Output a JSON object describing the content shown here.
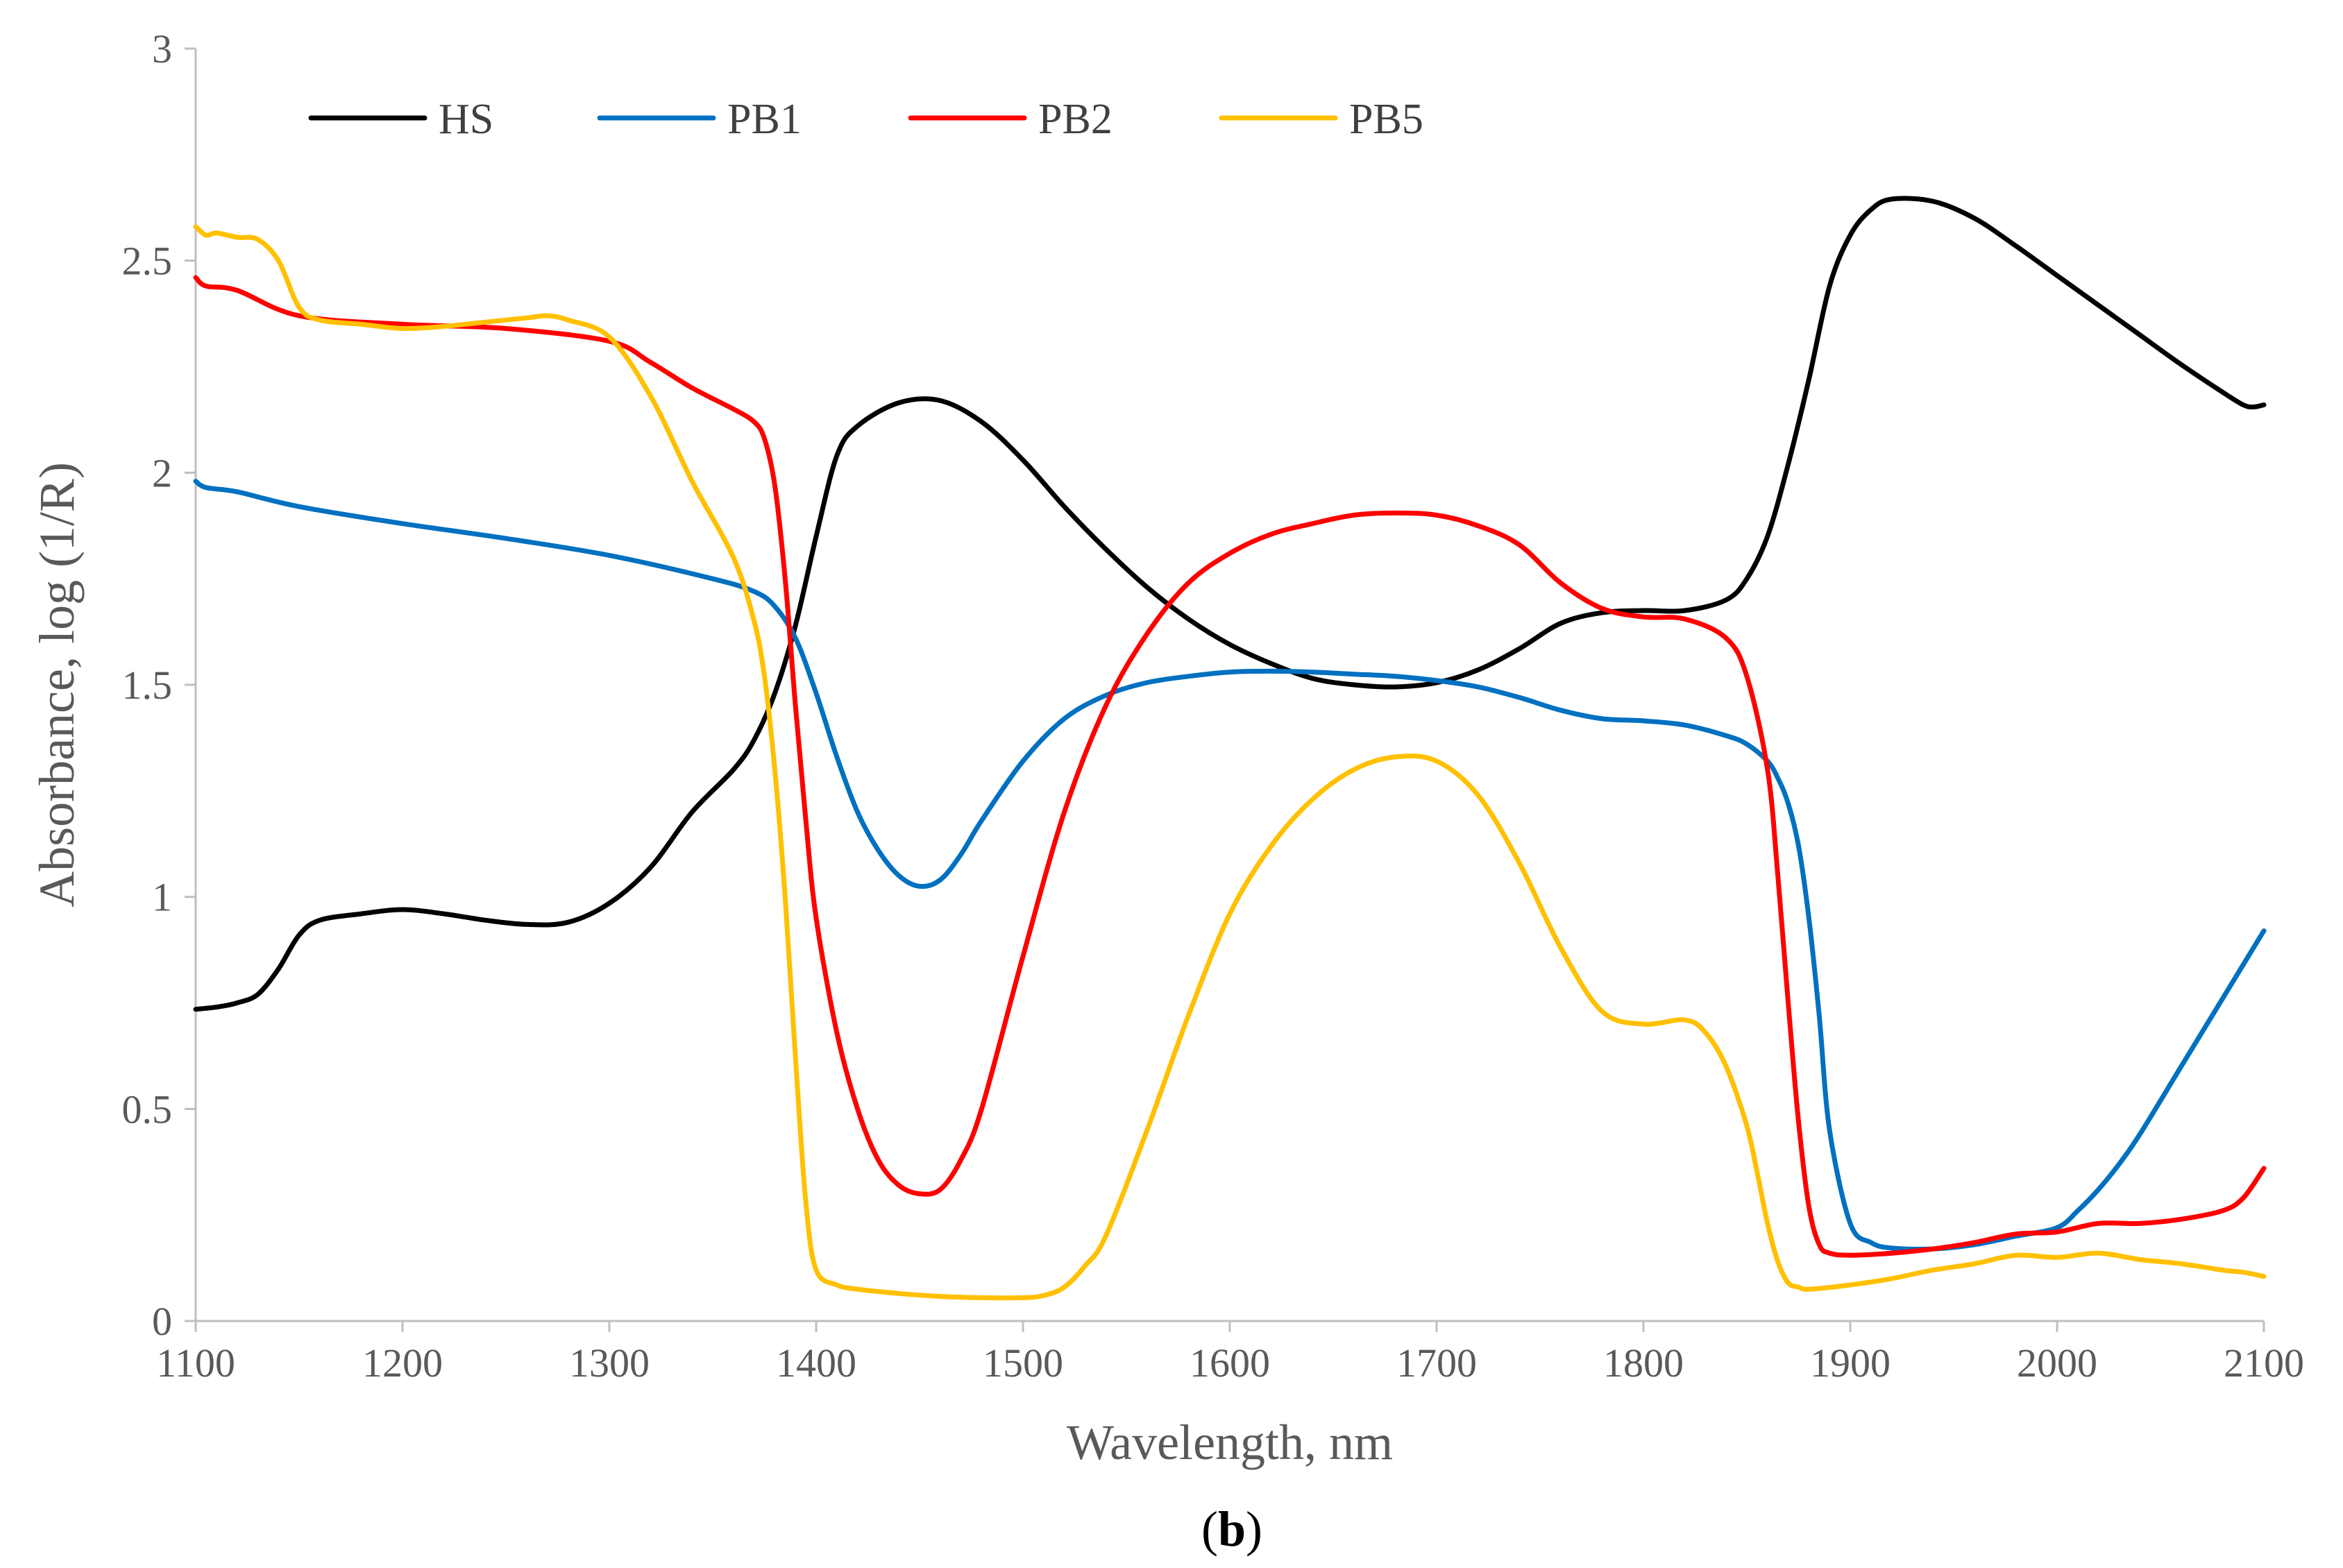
{
  "chart_data": {
    "type": "line",
    "title": "",
    "xlabel": "Wavelength, nm",
    "ylabel": "Absorbance, log (1/R)",
    "caption_letter": "b",
    "caption_open": "(",
    "caption_close": ")",
    "xlim": [
      1100,
      2100
    ],
    "ylim": [
      0,
      3
    ],
    "x_ticks": [
      1100,
      1200,
      1300,
      1400,
      1500,
      1600,
      1700,
      1800,
      1900,
      2000,
      2100
    ],
    "y_ticks": [
      0,
      0.5,
      1,
      1.5,
      2,
      2.5,
      3
    ],
    "y_tick_labels": [
      "0",
      "0.5",
      "1",
      "1.5",
      "2",
      "2.5",
      "3"
    ],
    "grid": false,
    "legend_position": "top",
    "series": [
      {
        "name": "HS",
        "color": "#000000",
        "x": [
          1100,
          1110,
          1120,
          1130,
          1140,
          1150,
          1160,
          1180,
          1200,
          1220,
          1240,
          1260,
          1280,
          1300,
          1320,
          1340,
          1360,
          1370,
          1380,
          1390,
          1400,
          1410,
          1420,
          1440,
          1460,
          1480,
          1500,
          1520,
          1540,
          1560,
          1580,
          1600,
          1620,
          1640,
          1660,
          1680,
          1700,
          1720,
          1740,
          1760,
          1780,
          1800,
          1820,
          1840,
          1850,
          1860,
          1870,
          1880,
          1890,
          1900,
          1910,
          1920,
          1940,
          1960,
          1980,
          2000,
          2020,
          2040,
          2060,
          2080,
          2090,
          2095,
          2100
        ],
        "values": [
          0.735,
          0.74,
          0.75,
          0.77,
          0.83,
          0.91,
          0.945,
          0.96,
          0.97,
          0.96,
          0.945,
          0.935,
          0.94,
          0.985,
          1.07,
          1.2,
          1.3,
          1.37,
          1.48,
          1.64,
          1.85,
          2.04,
          2.11,
          2.165,
          2.17,
          2.12,
          2.03,
          1.92,
          1.82,
          1.73,
          1.655,
          1.595,
          1.55,
          1.515,
          1.5,
          1.495,
          1.505,
          1.535,
          1.585,
          1.645,
          1.67,
          1.675,
          1.675,
          1.7,
          1.75,
          1.85,
          2.02,
          2.22,
          2.44,
          2.56,
          2.62,
          2.645,
          2.64,
          2.6,
          2.535,
          2.465,
          2.395,
          2.325,
          2.255,
          2.19,
          2.16,
          2.155,
          2.16
        ]
      },
      {
        "name": "PB1",
        "color": "#0070c0",
        "x": [
          1100,
          1105,
          1120,
          1150,
          1200,
          1250,
          1300,
          1350,
          1370,
          1380,
          1390,
          1400,
          1410,
          1420,
          1430,
          1440,
          1450,
          1460,
          1470,
          1480,
          1500,
          1520,
          1540,
          1560,
          1580,
          1600,
          1620,
          1640,
          1660,
          1680,
          1700,
          1720,
          1740,
          1760,
          1780,
          1800,
          1820,
          1840,
          1850,
          1860,
          1865,
          1870,
          1875,
          1880,
          1885,
          1890,
          1900,
          1910,
          1920,
          1940,
          1960,
          1980,
          2000,
          2010,
          2020,
          2030,
          2040,
          2060,
          2080,
          2090,
          2100
        ],
        "values": [
          1.98,
          1.965,
          1.955,
          1.92,
          1.88,
          1.845,
          1.805,
          1.75,
          1.72,
          1.685,
          1.61,
          1.48,
          1.33,
          1.2,
          1.11,
          1.05,
          1.025,
          1.04,
          1.1,
          1.18,
          1.32,
          1.42,
          1.475,
          1.505,
          1.52,
          1.53,
          1.532,
          1.53,
          1.525,
          1.52,
          1.51,
          1.495,
          1.47,
          1.44,
          1.42,
          1.415,
          1.405,
          1.38,
          1.36,
          1.32,
          1.28,
          1.22,
          1.12,
          0.95,
          0.72,
          0.45,
          0.23,
          0.185,
          0.172,
          0.17,
          0.18,
          0.2,
          0.22,
          0.26,
          0.31,
          0.37,
          0.44,
          0.6,
          0.76,
          0.84,
          0.92
        ]
      },
      {
        "name": "PB2",
        "color": "#ff0000",
        "x": [
          1100,
          1105,
          1120,
          1150,
          1200,
          1250,
          1300,
          1320,
          1340,
          1360,
          1370,
          1375,
          1380,
          1385,
          1390,
          1395,
          1400,
          1410,
          1420,
          1430,
          1440,
          1450,
          1460,
          1470,
          1480,
          1500,
          1520,
          1540,
          1560,
          1580,
          1600,
          1620,
          1640,
          1660,
          1680,
          1700,
          1720,
          1740,
          1760,
          1780,
          1800,
          1820,
          1840,
          1850,
          1860,
          1865,
          1870,
          1875,
          1880,
          1885,
          1890,
          1900,
          1920,
          1940,
          1960,
          1980,
          2000,
          2020,
          2040,
          2060,
          2080,
          2090,
          2100
        ],
        "values": [
          2.46,
          2.44,
          2.43,
          2.37,
          2.35,
          2.34,
          2.31,
          2.26,
          2.2,
          2.15,
          2.12,
          2.08,
          1.97,
          1.75,
          1.45,
          1.18,
          0.95,
          0.68,
          0.5,
          0.38,
          0.32,
          0.3,
          0.31,
          0.38,
          0.5,
          0.86,
          1.2,
          1.45,
          1.62,
          1.74,
          1.81,
          1.855,
          1.88,
          1.9,
          1.905,
          1.9,
          1.875,
          1.83,
          1.74,
          1.68,
          1.66,
          1.655,
          1.61,
          1.52,
          1.3,
          1.05,
          0.75,
          0.47,
          0.27,
          0.18,
          0.16,
          0.155,
          0.16,
          0.17,
          0.185,
          0.205,
          0.21,
          0.23,
          0.23,
          0.24,
          0.26,
          0.29,
          0.36
        ]
      },
      {
        "name": "PB5",
        "color": "#ffc000",
        "x": [
          1100,
          1105,
          1110,
          1120,
          1130,
          1140,
          1150,
          1160,
          1180,
          1200,
          1220,
          1240,
          1260,
          1270,
          1280,
          1300,
          1320,
          1340,
          1360,
          1370,
          1375,
          1380,
          1385,
          1390,
          1395,
          1400,
          1410,
          1420,
          1440,
          1460,
          1480,
          1500,
          1510,
          1520,
          1530,
          1540,
          1560,
          1580,
          1600,
          1620,
          1640,
          1660,
          1680,
          1700,
          1720,
          1740,
          1760,
          1780,
          1800,
          1820,
          1830,
          1840,
          1850,
          1855,
          1860,
          1865,
          1870,
          1875,
          1880,
          1900,
          1920,
          1940,
          1960,
          1980,
          2000,
          2020,
          2040,
          2060,
          2080,
          2090,
          2100
        ],
        "values": [
          2.58,
          2.56,
          2.565,
          2.555,
          2.55,
          2.5,
          2.39,
          2.36,
          2.35,
          2.34,
          2.345,
          2.355,
          2.365,
          2.37,
          2.36,
          2.32,
          2.18,
          1.98,
          1.8,
          1.65,
          1.52,
          1.3,
          1.0,
          0.62,
          0.28,
          0.12,
          0.085,
          0.075,
          0.065,
          0.058,
          0.055,
          0.055,
          0.06,
          0.08,
          0.13,
          0.2,
          0.45,
          0.72,
          0.96,
          1.12,
          1.23,
          1.3,
          1.33,
          1.32,
          1.24,
          1.08,
          0.88,
          0.73,
          0.7,
          0.71,
          0.68,
          0.6,
          0.46,
          0.35,
          0.23,
          0.14,
          0.09,
          0.08,
          0.075,
          0.085,
          0.1,
          0.12,
          0.135,
          0.155,
          0.15,
          0.16,
          0.145,
          0.135,
          0.12,
          0.115,
          0.105
        ]
      }
    ]
  }
}
